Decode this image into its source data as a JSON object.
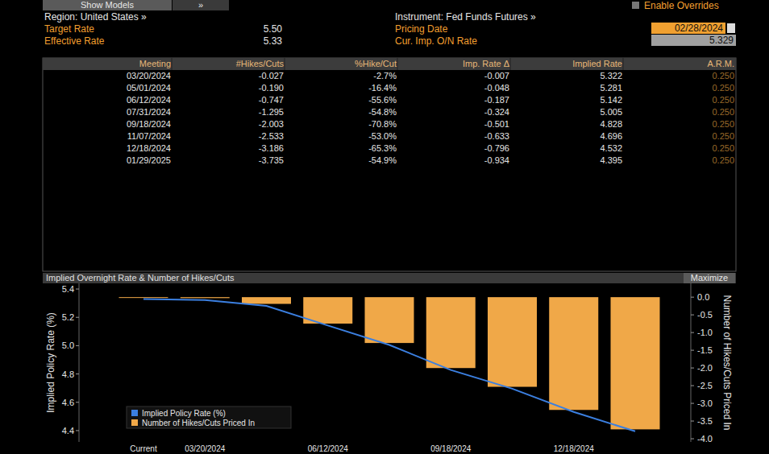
{
  "header": {
    "show_models": "Show Models",
    "nav_button": "»",
    "overrides": "Enable Overrides",
    "region": "Region: United States »",
    "instrument": "Instrument: Fed Funds Futures »",
    "target_rate_label": "Target Rate",
    "target_rate": "5.50",
    "effective_rate_label": "Effective Rate",
    "effective_rate": "5.33",
    "pricing_date_label": "Pricing Date",
    "pricing_date": "02/28/2024",
    "cur_imp_label": "Cur. Imp. O/N Rate",
    "cur_imp": "5.329"
  },
  "table": {
    "columns": [
      "Meeting",
      "#Hikes/Cuts",
      "%Hike/Cut",
      "Imp. Rate Δ",
      "Implied Rate",
      "A.R.M."
    ],
    "rows": [
      [
        "03/20/2024",
        "-0.027",
        "-2.7%",
        "-0.007",
        "5.322",
        "0.250"
      ],
      [
        "05/01/2024",
        "-0.190",
        "-16.4%",
        "-0.048",
        "5.281",
        "0.250"
      ],
      [
        "06/12/2024",
        "-0.747",
        "-55.6%",
        "-0.187",
        "5.142",
        "0.250"
      ],
      [
        "07/31/2024",
        "-1.295",
        "-54.8%",
        "-0.324",
        "5.005",
        "0.250"
      ],
      [
        "09/18/2024",
        "-2.003",
        "-70.8%",
        "-0.501",
        "4.828",
        "0.250"
      ],
      [
        "11/07/2024",
        "-2.533",
        "-53.0%",
        "-0.633",
        "4.696",
        "0.250"
      ],
      [
        "12/18/2024",
        "-3.186",
        "-65.3%",
        "-0.796",
        "4.532",
        "0.250"
      ],
      [
        "01/29/2025",
        "-3.735",
        "-54.9%",
        "-0.934",
        "4.395",
        "0.250"
      ]
    ]
  },
  "panel": {
    "maximize": "Maximize"
  },
  "chart_data": {
    "type": "bar",
    "title": "Implied Overnight Rate & Number of Hikes/Cuts",
    "y_label": "Implied Policy Rate (%)",
    "y2_label": "Number of Hikes/Cuts Priced In",
    "categories": [
      "Current",
      "03/20/2024",
      null,
      "06/12/2024",
      null,
      "09/18/2024",
      null,
      "12/18/2024",
      null
    ],
    "series": [
      {
        "name": "Implied Policy Rate (%)",
        "type": "line",
        "color": "#3b7fe0",
        "values": [
          5.329,
          5.322,
          5.281,
          5.142,
          5.005,
          4.828,
          4.696,
          4.532,
          4.395
        ]
      },
      {
        "name": "Number of Hikes/Cuts Priced In",
        "type": "bar",
        "axis": "y2",
        "color": "#f0a848",
        "values": [
          0,
          -0.027,
          -0.19,
          -0.747,
          -1.295,
          -2.003,
          -2.533,
          -3.186,
          -3.735
        ]
      }
    ],
    "ylim": [
      4.32,
      5.44
    ],
    "yticks": [
      {
        "value": 5.4,
        "label": "5.4"
      },
      {
        "value": 5.2,
        "label": "5.2"
      },
      {
        "value": 5.0,
        "label": "5.0"
      },
      {
        "value": 4.8,
        "label": "4.8"
      },
      {
        "value": 4.6,
        "label": "4.6"
      },
      {
        "value": 4.4,
        "label": "4.4"
      }
    ],
    "y2lim": [
      -4.09,
      0.39
    ],
    "y2ticks": [
      {
        "value": 0,
        "label": "0.0"
      },
      {
        "value": -0.5,
        "label": "-0.5"
      },
      {
        "value": -1,
        "label": "-1.0"
      },
      {
        "value": -1.5,
        "label": "-1.5"
      },
      {
        "value": -2,
        "label": "-2.0"
      },
      {
        "value": -2.5,
        "label": "-2.5"
      },
      {
        "value": -3,
        "label": "-3.0"
      },
      {
        "value": -3.5,
        "label": "-3.5"
      },
      {
        "value": -4,
        "label": "-4.0"
      }
    ],
    "grid": false,
    "legend": "lower left"
  }
}
